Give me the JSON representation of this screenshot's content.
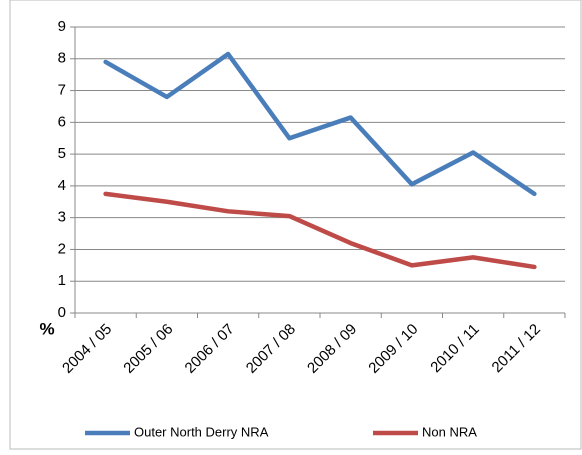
{
  "chart_data": {
    "type": "line",
    "y_label": "%",
    "categories": [
      "2004 / 05",
      "2005 / 06",
      "2006 / 07",
      "2007 / 08",
      "2008 / 09",
      "2009 / 10",
      "2010 / 11",
      "2011 / 12"
    ],
    "series": [
      {
        "name": "Outer North Derry NRA",
        "color": "#4a7ebb",
        "values": [
          7.9,
          6.8,
          8.15,
          5.5,
          6.15,
          4.05,
          5.05,
          3.75
        ]
      },
      {
        "name": "Non NRA",
        "color": "#be4b48",
        "values": [
          3.75,
          3.5,
          3.2,
          3.05,
          2.2,
          1.5,
          1.75,
          1.45
        ]
      }
    ],
    "ylim": [
      0,
      9
    ],
    "yticks": [
      0,
      1,
      2,
      3,
      4,
      5,
      6,
      7,
      8,
      9
    ],
    "grid": true,
    "legend": "bottom"
  }
}
